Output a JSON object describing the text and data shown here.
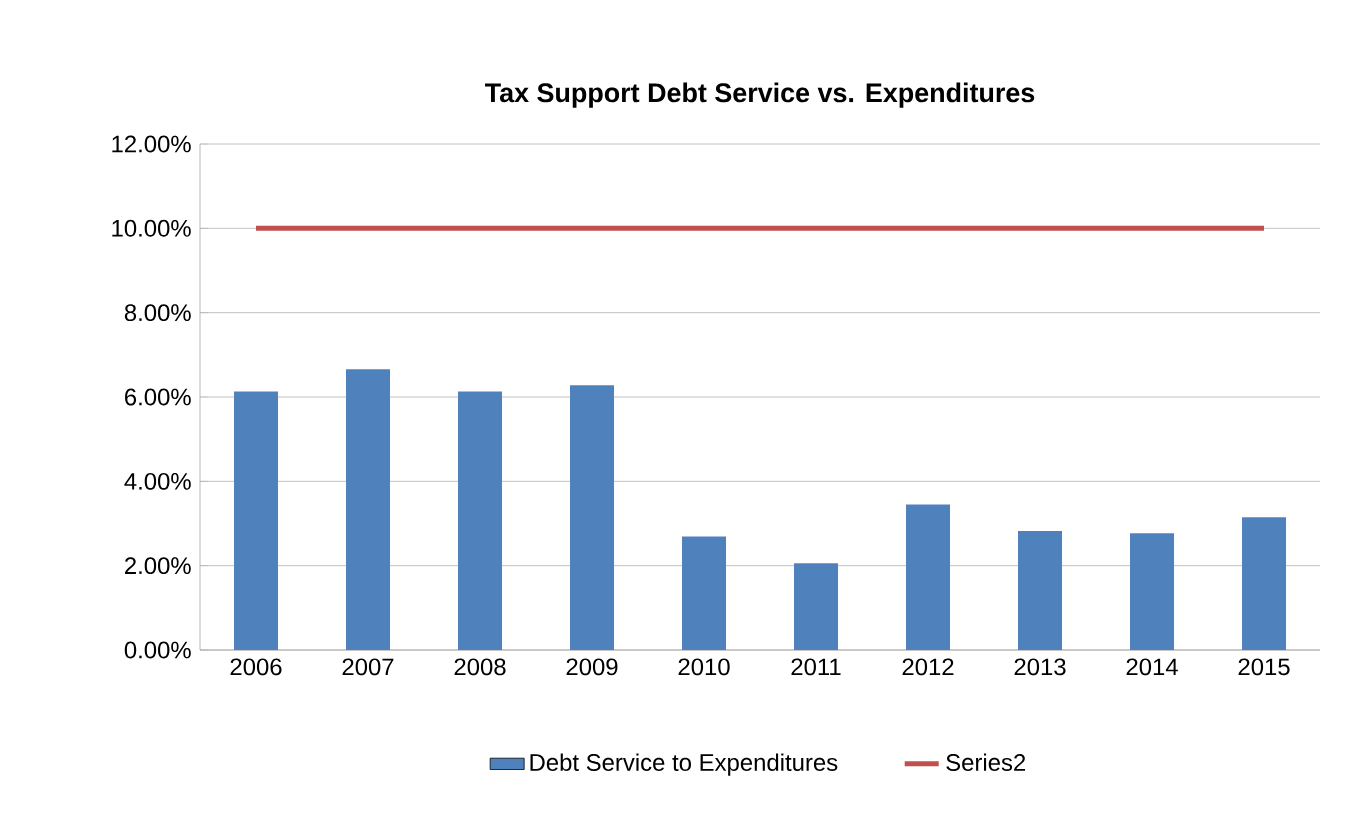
{
  "chart_data": {
    "type": "bar",
    "title": "Tax Support Debt Service vs. Expenditures",
    "categories": [
      "2006",
      "2007",
      "2008",
      "2009",
      "2010",
      "2011",
      "2012",
      "2013",
      "2014",
      "2015"
    ],
    "series": [
      {
        "name": "Debt Service to Expenditures",
        "color": "#4f81bd",
        "values": [
          6.13,
          6.66,
          6.13,
          6.28,
          2.69,
          2.06,
          3.45,
          2.82,
          2.77,
          3.15
        ]
      },
      {
        "name": "Series2",
        "type": "line",
        "color": "#c0504d",
        "values": [
          10,
          10,
          10,
          10,
          10,
          10,
          10,
          10,
          10,
          10
        ]
      }
    ],
    "ylim": [
      0,
      12
    ],
    "yticks": [
      {
        "value": 0,
        "label": "0.00%"
      },
      {
        "value": 2,
        "label": "2.00%"
      },
      {
        "value": 4,
        "label": "4.00%"
      },
      {
        "value": 6,
        "label": "6.00%"
      },
      {
        "value": 8,
        "label": "8.00%"
      },
      {
        "value": 10,
        "label": "10.00%"
      },
      {
        "value": 12,
        "label": "12.00%"
      }
    ],
    "grid": "y",
    "legend": "bottom",
    "marker": "none"
  }
}
